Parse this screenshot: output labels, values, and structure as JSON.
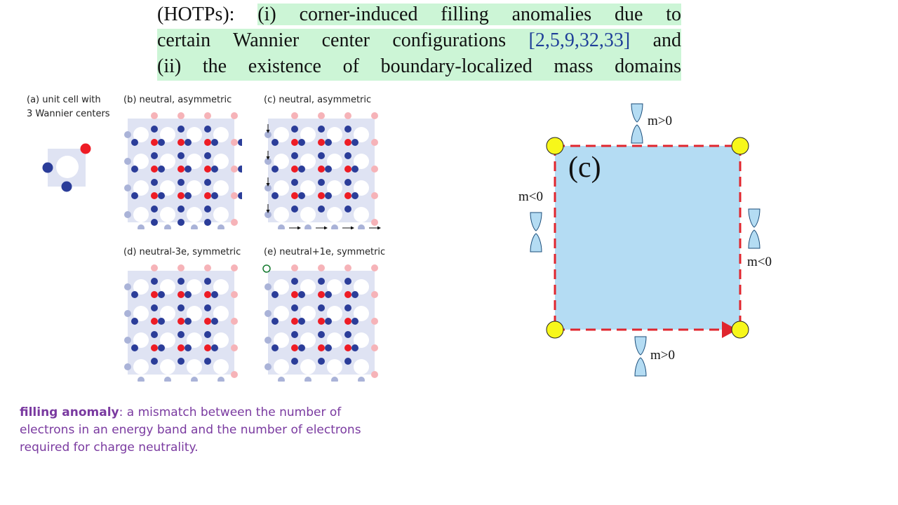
{
  "excerpt": {
    "line1_pre": "(HOTPs): ",
    "line1_hl": "(i) corner-induced filling anomalies due to",
    "line2_pre": "certain Wannier center configurations ",
    "line2_cite": "[2,5,9,32,33]",
    "line2_post": " and",
    "line3": "(ii) the existence of boundary-localized mass domains"
  },
  "figure_left": {
    "a_title_1": "(a) unit cell with",
    "a_title_2": "3 Wannier centers",
    "b_title": "(b) neutral, asymmetric",
    "c_title": "(c) neutral, asymmetric",
    "d_title": "(d) neutral-3e, symmetric",
    "e_title": "(e) neutral+1e, symmetric"
  },
  "figure_right": {
    "panel_label": "(c)",
    "top_mass": "m>0",
    "bottom_mass": "m>0",
    "left_mass": "m<0",
    "right_mass": "m<0"
  },
  "colors": {
    "highlight": "#ccf5d6",
    "cell_bg": "#dfe3f3",
    "blue_site": "#2b3d99",
    "red_site": "#ee1c25",
    "faded_red": "#f6b3b8",
    "faded_blue": "#aab3d8",
    "square_fill": "#b4dcf3",
    "domain_wall": "#e0262e",
    "corner_state": "#f7f71a",
    "note_text": "#7a3aa0"
  },
  "note": {
    "term": "filling anomaly",
    "definition": ": a mismatch between the number of electrons in an energy band and the number of electrons required for charge neutrality."
  }
}
